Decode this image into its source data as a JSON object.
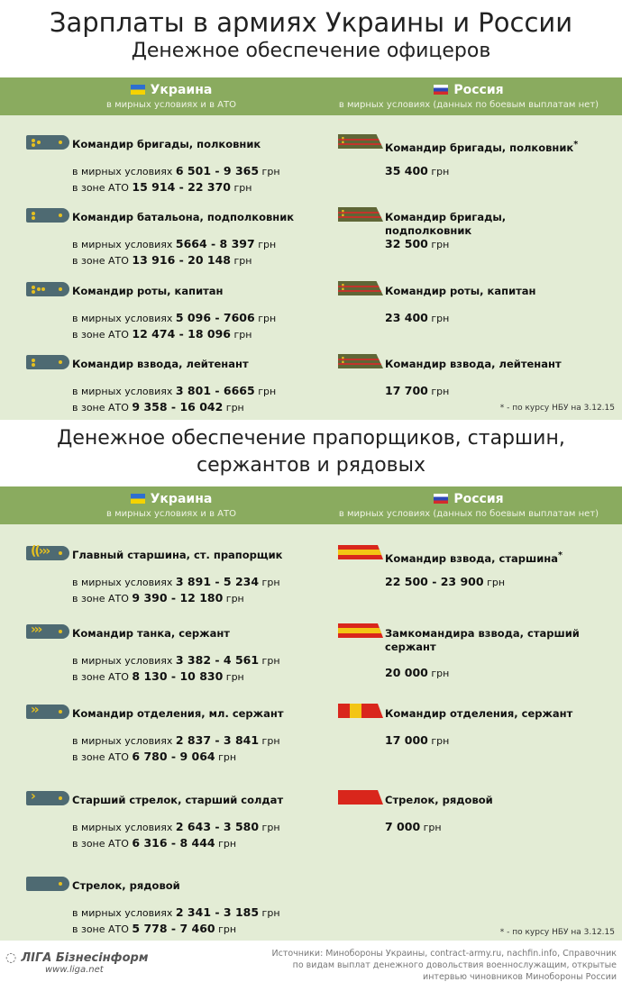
{
  "title": "Зарплаты в армиях Украины и России",
  "subtitle": "Денежное обеспечение офицеров",
  "section2_title_line1": "Денежное обеспечение прапорщиков, старшин,",
  "section2_title_line2": "сержантов и рядовых",
  "header": {
    "ukraine": "Украина",
    "ukraine_sub": "в мирных условиях и в АТО",
    "russia": "Россия",
    "russia_sub": "в мирных условиях (данных по боевым выплатам нет)"
  },
  "labels": {
    "peace": "в мирных условиях ",
    "ato": "в зоне АТО ",
    "currency": " грн"
  },
  "officers": {
    "ukraine": [
      {
        "rank": "Командир бригады, полковник",
        "peace": "6 501 - 9 365",
        "ato": "15 914 - 22 370",
        "stars": 3
      },
      {
        "rank": "Командир батальона, подполковник",
        "peace": "5664 - 8 397",
        "ato": "13 916 - 20 148",
        "stars": 2
      },
      {
        "rank": "Командир роты, капитан",
        "peace": "5 096 - 7606",
        "ato": "12 474 - 18 096",
        "stars": 4
      },
      {
        "rank": "Командир взвода, лейтенант",
        "peace": "3 801 - 6665",
        "ato": "9 358 - 16 042",
        "stars": 2
      }
    ],
    "russia": [
      {
        "rank": "Командир бригады, полковник",
        "asterisk": "*",
        "salary": "35 400"
      },
      {
        "rank": "Командир бригады, подполковник",
        "salary": "32 500"
      },
      {
        "rank": "Командир роты, капитан",
        "salary": "23 400"
      },
      {
        "rank": "Командир взвода, лейтенант",
        "salary": "17 700"
      }
    ]
  },
  "enlisted": {
    "ukraine": [
      {
        "rank": "Главный старшина, ст. прапорщик",
        "peace": "3 891 - 5 234",
        "ato": "9 390 - 12 180",
        "chevrons": "((›››"
      },
      {
        "rank": "Командир танка, сержант",
        "peace": "3 382 - 4 561",
        "ato": "8 130 - 10 830",
        "chevrons": "›››"
      },
      {
        "rank": "Командир отделения, мл. сержант",
        "peace": "2 837 - 3 841",
        "ato": "6 780 - 9 064",
        "chevrons": "››"
      },
      {
        "rank": "Старший стрелок, старший солдат",
        "peace": "2 643 - 3 580",
        "ato": "6 316 - 8 444",
        "chevrons": "›"
      },
      {
        "rank": "Стрелок, рядовой",
        "peace": "2 341 - 3 185",
        "ato": "5 778 - 7 460",
        "chevrons": ""
      }
    ],
    "russia": [
      {
        "rank": "Командир взвода, старшина",
        "asterisk": "*",
        "salary": "22 500 - 23 900"
      },
      {
        "rank": "Замкомандира взвода, старший сержант",
        "salary": "20 000"
      },
      {
        "rank": "Командир отделения, сержант",
        "salary": "17 000"
      },
      {
        "rank": "Стрелок, рядовой",
        "salary": "7 000"
      }
    ]
  },
  "footnote": "* - по курсу НБУ на 3.12.15",
  "footer": {
    "logo": "ЛІГА Бізнесінформ",
    "logo_url": "www.liga.net",
    "sources": "Источники: Минобороны Украины, contract-army.ru, nachfin.info, Справочник по видам выплат денежного довольствия военнослужащим, открытые интервью чиновников Минобороны России"
  },
  "colors": {
    "header_band": "#8aab5f",
    "panel": "#e3ecd5",
    "ua_board": "#4e6a72",
    "ru_officer_board": "#5f6636",
    "ru_enlisted_board": "#d9261c",
    "insignia": "#e6c020"
  }
}
